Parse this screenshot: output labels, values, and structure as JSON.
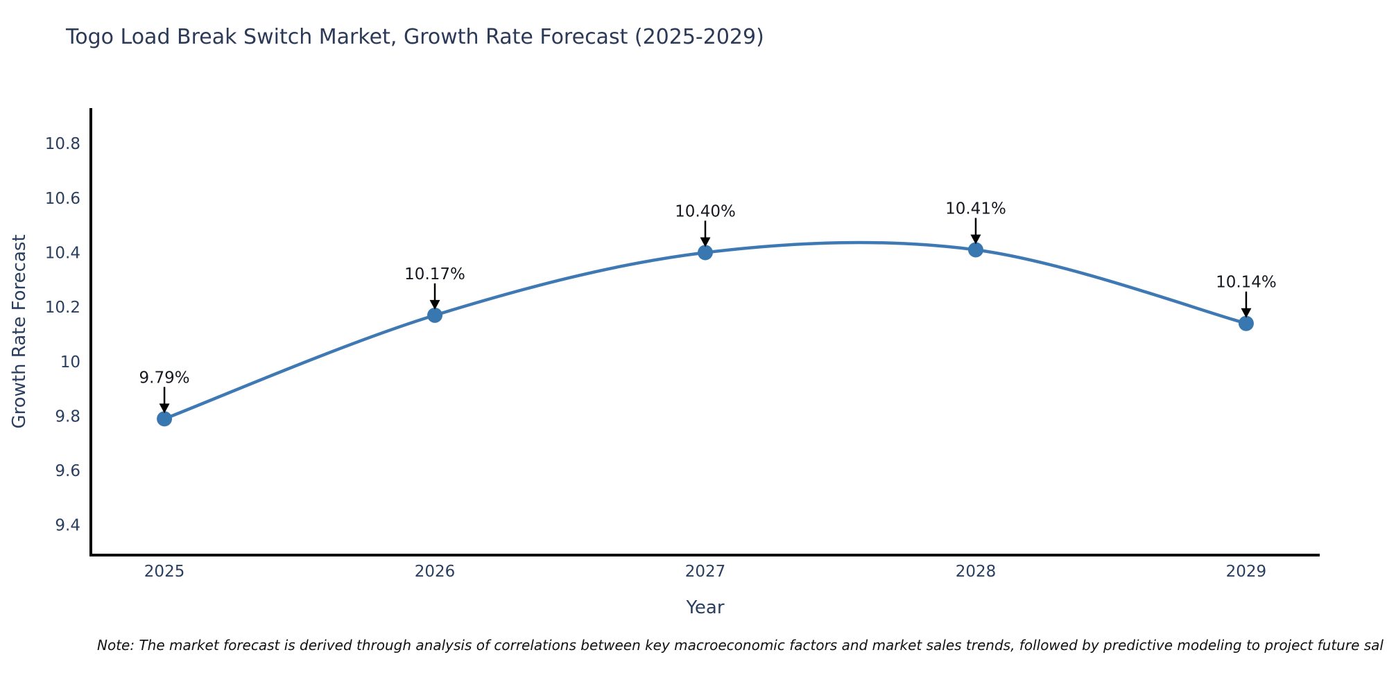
{
  "title": "Togo Load Break Switch Market, Growth Rate Forecast (2025-2029)",
  "note": "Note: The market forecast is derived through analysis of correlations between key macroeconomic factors and market sales trends, followed by predictive modeling to project future sal",
  "chart_data": {
    "type": "line",
    "title": "Togo Load Break Switch Market, Growth Rate Forecast (2025-2029)",
    "xlabel": "Year",
    "ylabel": "Growth Rate Forecast",
    "x": [
      2025,
      2026,
      2027,
      2028,
      2029
    ],
    "values": [
      9.79,
      10.17,
      10.4,
      10.41,
      10.14
    ],
    "point_labels": [
      "9.79%",
      "10.17%",
      "10.40%",
      "10.41%",
      "10.14%"
    ],
    "x_tick_labels": [
      "2025",
      "2026",
      "2027",
      "2028",
      "2029"
    ],
    "y_tick_values": [
      10.8,
      10.6,
      10.4,
      10.2,
      10,
      9.8,
      9.6,
      9.4
    ],
    "y_tick_labels": [
      "10.8",
      "10.6",
      "10.4",
      "10.2",
      "10",
      "9.8",
      "9.6",
      "9.4"
    ],
    "xlim": [
      2024.728,
      2029.272
    ],
    "ylim": [
      9.29,
      10.93
    ],
    "grid": false,
    "legend_position": "none",
    "colors": {
      "line": "#3e79b4",
      "marker": "#3977b1",
      "axis": "#000000",
      "tick_text": "#2a3f5f",
      "axis_label_text": "#2a3f5f",
      "annotation_text": "#15181f",
      "arrow": "#000000",
      "background": "#ffffff"
    }
  }
}
